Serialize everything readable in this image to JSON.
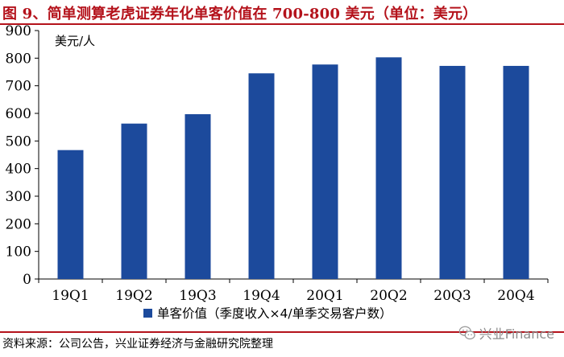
{
  "figure": {
    "title": "图 9、简单测算老虎证券年化单客价值在 700-800 美元（单位：美元）",
    "source": "资料来源：公司公告，兴业证券经济与金融研究院整理",
    "watermark": "兴业Finance"
  },
  "colors": {
    "bar": "#1c4a9c",
    "title": "#b4121b",
    "axis": "#000000"
  },
  "chart_data": {
    "type": "bar",
    "title": "",
    "unit_label": "美元/人",
    "categories": [
      "19Q1",
      "19Q2",
      "19Q3",
      "19Q4",
      "20Q1",
      "20Q2",
      "20Q3",
      "20Q4"
    ],
    "series": [
      {
        "name": "单客价值（季度收入×4/单季交易客户数）",
        "values": [
          467,
          563,
          597,
          745,
          777,
          803,
          772,
          772
        ]
      }
    ],
    "ylim": [
      0,
      900
    ],
    "yticks": [
      0,
      100,
      200,
      300,
      400,
      500,
      600,
      700,
      800,
      900
    ],
    "grid": false,
    "legend_position": "bottom-center"
  }
}
